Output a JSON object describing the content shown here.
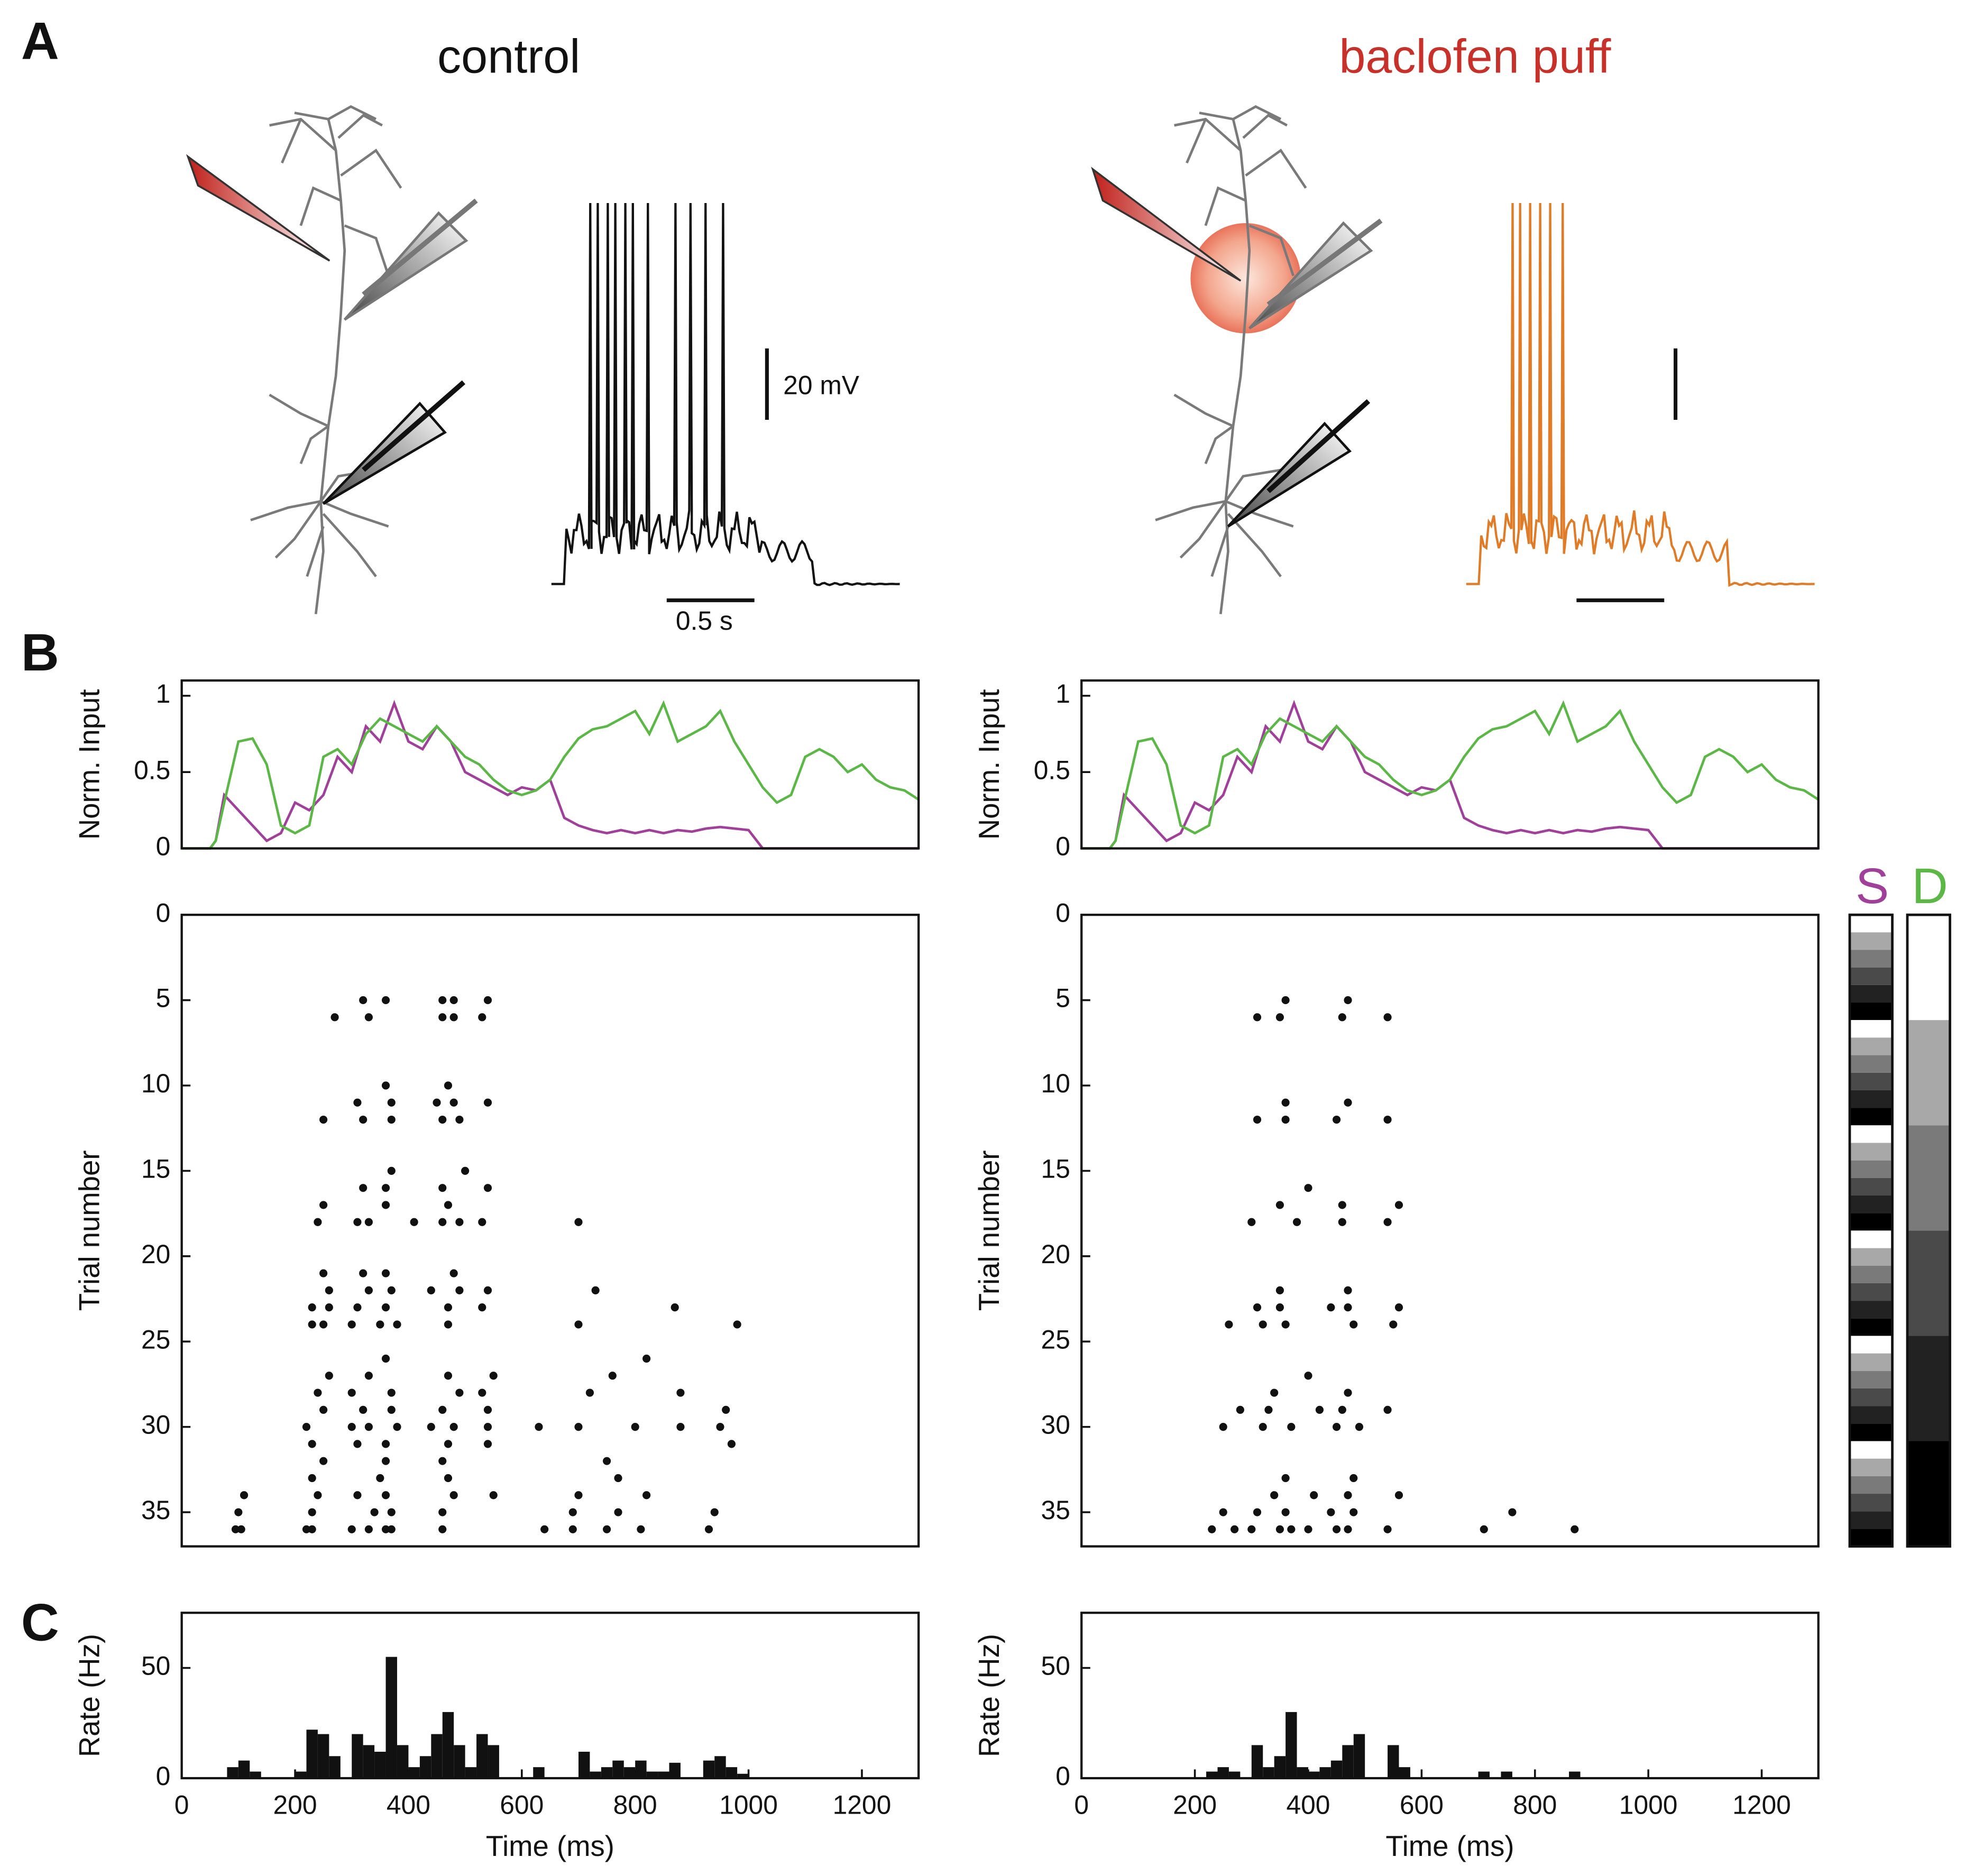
{
  "panels": {
    "a": "A",
    "b": "B",
    "c": "C"
  },
  "conditions": [
    "control",
    "baclofen puff"
  ],
  "scale_bars": {
    "voltage": "20 mV",
    "time": "0.5 s"
  },
  "colorbar_labels": [
    "S",
    "D"
  ],
  "chart_data": [
    {
      "type": "line",
      "ylabel": "Norm. Input",
      "xlim": [
        0,
        1300
      ],
      "ylim": [
        0,
        1.1
      ],
      "yticks": [
        0,
        0.5,
        1
      ],
      "x": [
        0,
        25,
        50,
        60,
        75,
        100,
        125,
        150,
        175,
        200,
        225,
        250,
        275,
        300,
        325,
        350,
        375,
        400,
        425,
        450,
        475,
        500,
        525,
        550,
        575,
        600,
        625,
        650,
        675,
        700,
        725,
        750,
        775,
        800,
        825,
        850,
        875,
        900,
        925,
        950,
        975,
        1000,
        1025,
        1050,
        1075,
        1100,
        1125,
        1150,
        1175,
        1200,
        1225,
        1250,
        1275,
        1300
      ],
      "series": [
        {
          "color": "#a0409a",
          "values": [
            0,
            0,
            0,
            0.05,
            0.35,
            0.25,
            0.15,
            0.05,
            0.1,
            0.3,
            0.25,
            0.35,
            0.6,
            0.5,
            0.8,
            0.7,
            0.95,
            0.7,
            0.65,
            0.8,
            0.7,
            0.5,
            0.45,
            0.4,
            0.35,
            0.4,
            0.38,
            0.45,
            0.2,
            0.15,
            0.12,
            0.1,
            0.12,
            0.1,
            0.12,
            0.1,
            0.12,
            0.11,
            0.13,
            0.14,
            0.13,
            0.12,
            0,
            0,
            0,
            0,
            0,
            0,
            0,
            0,
            0,
            0,
            0,
            0
          ]
        },
        {
          "color": "#5cb846",
          "values": [
            0,
            0,
            0,
            0.05,
            0.3,
            0.7,
            0.72,
            0.55,
            0.15,
            0.1,
            0.15,
            0.6,
            0.65,
            0.55,
            0.75,
            0.85,
            0.8,
            0.75,
            0.7,
            0.8,
            0.7,
            0.6,
            0.55,
            0.45,
            0.38,
            0.35,
            0.38,
            0.45,
            0.6,
            0.72,
            0.78,
            0.8,
            0.85,
            0.9,
            0.75,
            0.95,
            0.7,
            0.75,
            0.8,
            0.9,
            0.7,
            0.55,
            0.4,
            0.3,
            0.35,
            0.6,
            0.65,
            0.6,
            0.5,
            0.55,
            0.45,
            0.4,
            0.38,
            0.32
          ]
        }
      ]
    },
    {
      "type": "scatter",
      "ylabel": "Trial number",
      "xlim": [
        0,
        1300
      ],
      "ylim": [
        0,
        37
      ],
      "yinvert": true,
      "yticks": [
        0,
        5,
        10,
        15,
        20,
        25,
        30,
        35
      ],
      "color": "#111111",
      "x": [
        320,
        360,
        460,
        480,
        540,
        270,
        330,
        460,
        480,
        530,
        360,
        470,
        310,
        370,
        450,
        480,
        540,
        250,
        320,
        370,
        460,
        490,
        370,
        500,
        320,
        360,
        460,
        540,
        250,
        360,
        470,
        240,
        310,
        330,
        410,
        460,
        490,
        530,
        700,
        250,
        320,
        360,
        480,
        260,
        330,
        370,
        440,
        490,
        540,
        730,
        230,
        260,
        310,
        360,
        470,
        530,
        870,
        230,
        250,
        300,
        350,
        380,
        470,
        700,
        980,
        360,
        820,
        260,
        330,
        470,
        550,
        760,
        240,
        300,
        370,
        490,
        530,
        720,
        880,
        250,
        320,
        370,
        460,
        540,
        960,
        220,
        300,
        330,
        380,
        440,
        480,
        540,
        630,
        700,
        800,
        880,
        950,
        230,
        310,
        360,
        470,
        540,
        970,
        250,
        360,
        460,
        750,
        230,
        350,
        470,
        770,
        110,
        240,
        310,
        360,
        480,
        550,
        700,
        820,
        100,
        230,
        340,
        370,
        460,
        690,
        770,
        940,
        95,
        105,
        220,
        230,
        300,
        330,
        360,
        370,
        460,
        640,
        690,
        750,
        810,
        930
      ],
      "values": [
        5,
        5,
        5,
        5,
        5,
        6,
        6,
        6,
        6,
        6,
        10,
        10,
        11,
        11,
        11,
        11,
        11,
        12,
        12,
        12,
        12,
        12,
        15,
        15,
        16,
        16,
        16,
        16,
        17,
        17,
        17,
        18,
        18,
        18,
        18,
        18,
        18,
        18,
        18,
        21,
        21,
        21,
        21,
        22,
        22,
        22,
        22,
        22,
        22,
        22,
        23,
        23,
        23,
        23,
        23,
        23,
        23,
        24,
        24,
        24,
        24,
        24,
        24,
        24,
        24,
        26,
        26,
        27,
        27,
        27,
        27,
        27,
        28,
        28,
        28,
        28,
        28,
        28,
        28,
        29,
        29,
        29,
        29,
        29,
        29,
        30,
        30,
        30,
        30,
        30,
        30,
        30,
        30,
        30,
        30,
        30,
        30,
        31,
        31,
        31,
        31,
        31,
        31,
        32,
        32,
        32,
        32,
        33,
        33,
        33,
        33,
        34,
        34,
        34,
        34,
        34,
        34,
        34,
        34,
        35,
        35,
        35,
        35,
        35,
        35,
        35,
        35,
        36,
        36,
        36,
        36,
        36,
        36,
        36,
        36,
        36,
        36,
        36,
        36,
        36,
        36
      ]
    },
    {
      "type": "histogram",
      "ylabel": "Rate (Hz)",
      "xlabel": "Time (ms)",
      "xlim": [
        0,
        1300
      ],
      "ylim": [
        0,
        75
      ],
      "yticks": [
        0,
        50
      ],
      "xticks": [
        0,
        200,
        400,
        600,
        800,
        1000,
        1200
      ],
      "color": "#111111",
      "bins": [
        80,
        100,
        120,
        140,
        160,
        180,
        200,
        220,
        240,
        260,
        280,
        300,
        320,
        340,
        360,
        380,
        400,
        420,
        440,
        460,
        480,
        500,
        520,
        540,
        560,
        580,
        600,
        620,
        640,
        660,
        680,
        700,
        720,
        740,
        760,
        780,
        800,
        820,
        840,
        860,
        880,
        900,
        920,
        940,
        960,
        980,
        1000,
        1020
      ],
      "values": [
        5,
        8,
        3,
        0,
        0,
        0,
        3,
        22,
        20,
        10,
        0,
        20,
        15,
        12,
        55,
        15,
        5,
        10,
        20,
        30,
        15,
        5,
        20,
        15,
        0,
        0,
        0,
        5,
        0,
        0,
        0,
        12,
        3,
        5,
        8,
        5,
        8,
        3,
        3,
        7,
        0,
        0,
        8,
        10,
        5,
        2,
        0
      ]
    },
    {
      "type": "line",
      "ylabel": "Norm. Input",
      "xlim": [
        0,
        1300
      ],
      "ylim": [
        0,
        1.1
      ],
      "yticks": [
        0,
        0.5,
        1
      ],
      "x": [
        0,
        25,
        50,
        60,
        75,
        100,
        125,
        150,
        175,
        200,
        225,
        250,
        275,
        300,
        325,
        350,
        375,
        400,
        425,
        450,
        475,
        500,
        525,
        550,
        575,
        600,
        625,
        650,
        675,
        700,
        725,
        750,
        775,
        800,
        825,
        850,
        875,
        900,
        925,
        950,
        975,
        1000,
        1025,
        1050,
        1075,
        1100,
        1125,
        1150,
        1175,
        1200,
        1225,
        1250,
        1275,
        1300
      ],
      "series": [
        {
          "color": "#a0409a",
          "values": [
            0,
            0,
            0,
            0.05,
            0.35,
            0.25,
            0.15,
            0.05,
            0.1,
            0.3,
            0.25,
            0.35,
            0.6,
            0.5,
            0.8,
            0.7,
            0.95,
            0.7,
            0.65,
            0.8,
            0.7,
            0.5,
            0.45,
            0.4,
            0.35,
            0.4,
            0.38,
            0.45,
            0.2,
            0.15,
            0.12,
            0.1,
            0.12,
            0.1,
            0.12,
            0.1,
            0.12,
            0.11,
            0.13,
            0.14,
            0.13,
            0.12,
            0,
            0,
            0,
            0,
            0,
            0,
            0,
            0,
            0,
            0,
            0,
            0
          ]
        },
        {
          "color": "#5cb846",
          "values": [
            0,
            0,
            0,
            0.05,
            0.3,
            0.7,
            0.72,
            0.55,
            0.15,
            0.1,
            0.15,
            0.6,
            0.65,
            0.55,
            0.75,
            0.85,
            0.8,
            0.75,
            0.7,
            0.8,
            0.7,
            0.6,
            0.55,
            0.45,
            0.38,
            0.35,
            0.38,
            0.45,
            0.6,
            0.72,
            0.78,
            0.8,
            0.85,
            0.9,
            0.75,
            0.95,
            0.7,
            0.75,
            0.8,
            0.9,
            0.7,
            0.55,
            0.4,
            0.3,
            0.35,
            0.6,
            0.65,
            0.6,
            0.5,
            0.55,
            0.45,
            0.4,
            0.38,
            0.32
          ]
        }
      ]
    },
    {
      "type": "scatter",
      "ylabel": "Trial number",
      "xlim": [
        0,
        1300
      ],
      "ylim": [
        0,
        37
      ],
      "yinvert": true,
      "yticks": [
        0,
        5,
        10,
        15,
        20,
        25,
        30,
        35
      ],
      "color": "#111111",
      "x": [
        360,
        470,
        310,
        350,
        460,
        540,
        360,
        470,
        310,
        360,
        450,
        540,
        400,
        350,
        460,
        560,
        300,
        380,
        460,
        540,
        350,
        470,
        310,
        350,
        440,
        470,
        560,
        260,
        320,
        360,
        480,
        550,
        400,
        340,
        470,
        280,
        330,
        420,
        460,
        540,
        250,
        320,
        370,
        450,
        490,
        360,
        480,
        340,
        410,
        470,
        560,
        250,
        310,
        360,
        440,
        480,
        760,
        230,
        270,
        300,
        350,
        370,
        400,
        450,
        470,
        540,
        710,
        870
      ],
      "values": [
        5,
        5,
        6,
        6,
        6,
        6,
        11,
        11,
        12,
        12,
        12,
        12,
        16,
        17,
        17,
        17,
        18,
        18,
        18,
        18,
        22,
        22,
        23,
        23,
        23,
        23,
        23,
        24,
        24,
        24,
        24,
        24,
        27,
        28,
        28,
        29,
        29,
        29,
        29,
        29,
        30,
        30,
        30,
        30,
        30,
        33,
        33,
        34,
        34,
        34,
        34,
        35,
        35,
        35,
        35,
        35,
        35,
        36,
        36,
        36,
        36,
        36,
        36,
        36,
        36,
        36,
        36,
        36
      ]
    },
    {
      "type": "histogram",
      "ylabel": "Rate (Hz)",
      "xlabel": "Time (ms)",
      "xlim": [
        0,
        1300
      ],
      "ylim": [
        0,
        75
      ],
      "yticks": [
        0,
        50
      ],
      "xticks": [
        0,
        200,
        400,
        600,
        800,
        1000,
        1200
      ],
      "color": "#111111",
      "bins": [
        220,
        240,
        260,
        280,
        300,
        320,
        340,
        360,
        380,
        400,
        420,
        440,
        460,
        480,
        500,
        520,
        540,
        560,
        580,
        600,
        620,
        640,
        660,
        680,
        700,
        720,
        740,
        760,
        780,
        800,
        820,
        840,
        860,
        880,
        900
      ],
      "values": [
        3,
        5,
        3,
        0,
        15,
        5,
        10,
        30,
        5,
        3,
        5,
        8,
        15,
        20,
        0,
        0,
        15,
        5,
        0,
        0,
        0,
        0,
        0,
        0,
        3,
        0,
        3,
        0,
        0,
        0,
        0,
        0,
        3,
        0
      ]
    }
  ]
}
